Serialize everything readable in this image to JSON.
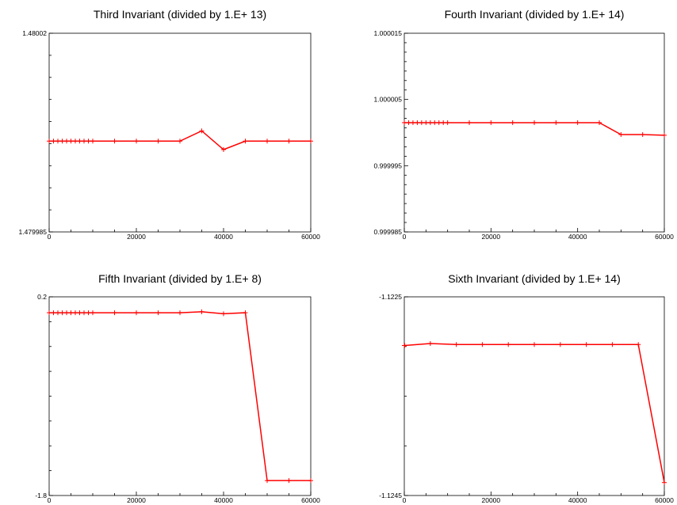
{
  "chart_data": [
    {
      "type": "line",
      "title": "Third Invariant (divided by 1.E+ 13)",
      "xlim": [
        0,
        60000
      ],
      "ylim": [
        1.479985,
        1.48002
      ],
      "x_ticks": [
        0,
        20000,
        40000,
        60000
      ],
      "x_tick_labels": [
        "0",
        "20000",
        "40000",
        "60000"
      ],
      "y_tick_labels": [
        "1.48002",
        "1.479985"
      ],
      "y_minor_tick_count": 8,
      "color": "#ff0000",
      "series": [
        {
          "x": [
            0,
            1000,
            2000,
            3000,
            4000,
            5000,
            6000,
            7000,
            8000,
            9000,
            10000,
            15000,
            20000,
            25000,
            30000,
            35000,
            40000,
            45000,
            50000,
            55000,
            60000
          ],
          "y": [
            1.480001,
            1.480001,
            1.480001,
            1.480001,
            1.480001,
            1.480001,
            1.480001,
            1.480001,
            1.480001,
            1.480001,
            1.480001,
            1.480001,
            1.480001,
            1.480001,
            1.480001,
            1.4800028,
            1.4799995,
            1.480001,
            1.480001,
            1.480001,
            1.480001
          ]
        }
      ]
    },
    {
      "type": "line",
      "title": "Fourth Invariant (divided by 1.E+ 14)",
      "xlim": [
        0,
        60000
      ],
      "ylim": [
        0.999985,
        1.000015
      ],
      "x_ticks": [
        0,
        20000,
        40000,
        60000
      ],
      "x_tick_labels": [
        "0",
        "20000",
        "40000",
        "60000"
      ],
      "y_tick_labels": [
        "1.000015",
        "1.000005",
        "0.999995",
        "0.999985"
      ],
      "y_minor_tick_count": 6,
      "color": "#ff0000",
      "series": [
        {
          "x": [
            0,
            1000,
            2000,
            3000,
            4000,
            5000,
            6000,
            7000,
            8000,
            9000,
            10000,
            15000,
            20000,
            25000,
            30000,
            35000,
            40000,
            45000,
            50000,
            55000,
            60000
          ],
          "y": [
            1.0000015,
            1.0000015,
            1.0000015,
            1.0000015,
            1.0000015,
            1.0000015,
            1.0000015,
            1.0000015,
            1.0000015,
            1.0000015,
            1.0000015,
            1.0000015,
            1.0000015,
            1.0000015,
            1.0000015,
            1.0000015,
            1.0000015,
            1.0000015,
            0.9999997,
            0.9999997,
            0.9999996
          ]
        }
      ]
    },
    {
      "type": "line",
      "title": "Fifth Invariant (divided by 1.E+ 8)",
      "xlim": [
        0,
        60000
      ],
      "ylim": [
        -1.8,
        0.2
      ],
      "x_ticks": [
        0,
        20000,
        40000,
        60000
      ],
      "x_tick_labels": [
        "0",
        "20000",
        "40000",
        "60000"
      ],
      "y_tick_labels": [
        "0.2",
        "-1.8"
      ],
      "y_minor_tick_count": 7,
      "color": "#ff0000",
      "series": [
        {
          "x": [
            0,
            1000,
            2000,
            3000,
            4000,
            5000,
            6000,
            7000,
            8000,
            9000,
            10000,
            15000,
            20000,
            25000,
            30000,
            35000,
            40000,
            45000,
            50000,
            55000,
            60000
          ],
          "y": [
            0.04,
            0.04,
            0.04,
            0.04,
            0.04,
            0.04,
            0.04,
            0.04,
            0.04,
            0.04,
            0.04,
            0.04,
            0.04,
            0.04,
            0.04,
            0.05,
            0.03,
            0.04,
            -1.65,
            -1.65,
            -1.65
          ]
        }
      ]
    },
    {
      "type": "line",
      "title": "Sixth Invariant (divided by 1.E+ 14)",
      "xlim": [
        0,
        60000
      ],
      "ylim": [
        -1.1245,
        -1.1225
      ],
      "x_ticks": [
        0,
        20000,
        40000,
        60000
      ],
      "x_tick_labels": [
        "0",
        "20000",
        "40000",
        "60000"
      ],
      "y_tick_labels": [
        "-1.1225",
        "-1.1245"
      ],
      "y_minor_tick_count": 3,
      "color": "#ff0000",
      "series": [
        {
          "x": [
            0,
            100,
            6000,
            12000,
            18000,
            24000,
            30000,
            36000,
            42000,
            48000,
            54000,
            60000
          ],
          "y": [
            -1.12299,
            -1.12299,
            -1.12297,
            -1.12298,
            -1.12298,
            -1.12298,
            -1.12298,
            -1.12298,
            -1.12298,
            -1.12298,
            -1.12298,
            -1.12437
          ]
        }
      ]
    }
  ]
}
